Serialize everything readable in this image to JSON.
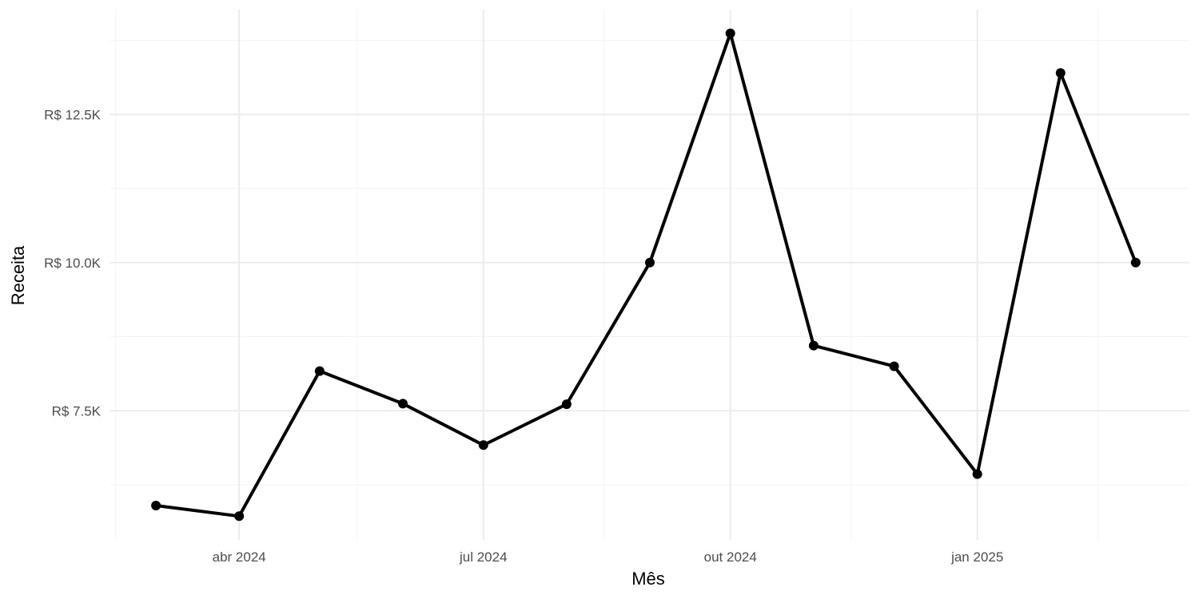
{
  "chart_data": {
    "type": "line",
    "title": "",
    "xlabel": "Mês",
    "ylabel": "Receita",
    "x": [
      "2024-03-01",
      "2024-04-01",
      "2024-05-01",
      "2024-06-01",
      "2024-07-01",
      "2024-08-01",
      "2024-09-01",
      "2024-10-01",
      "2024-11-01",
      "2024-12-01",
      "2025-01-01",
      "2025-02-01",
      "2025-03-01"
    ],
    "series": [
      {
        "values": [
          5900,
          5720,
          8170,
          7620,
          6920,
          7610,
          10000,
          13870,
          8600,
          8250,
          6430,
          13200,
          10000
        ]
      }
    ],
    "x_ticks": [
      {
        "date": "2024-04-01",
        "label": "abr 2024"
      },
      {
        "date": "2024-07-01",
        "label": "jul 2024"
      },
      {
        "date": "2024-10-01",
        "label": "out 2024"
      },
      {
        "date": "2025-01-01",
        "label": "jan 2025"
      }
    ],
    "x_minor_ticks": [
      "2024-02-15",
      "2024-05-15",
      "2024-08-15",
      "2024-11-15",
      "2025-02-15"
    ],
    "y_ticks": [
      {
        "value": 7500,
        "label": "R$ 7.5K"
      },
      {
        "value": 10000,
        "label": "R$ 10.0K"
      },
      {
        "value": 12500,
        "label": "R$ 12.5K"
      }
    ],
    "y_minor_ticks": [
      6250,
      8750,
      11250,
      13750
    ],
    "xlim": [
      "2024-02-13",
      "2025-03-21"
    ],
    "ylim": [
      5320,
      14270
    ],
    "grid": true,
    "legend": "none",
    "colors": {
      "line": "#000000",
      "grid_major": "#ebebeb",
      "grid_minor": "#f3f3f3",
      "background": "#ffffff"
    }
  }
}
